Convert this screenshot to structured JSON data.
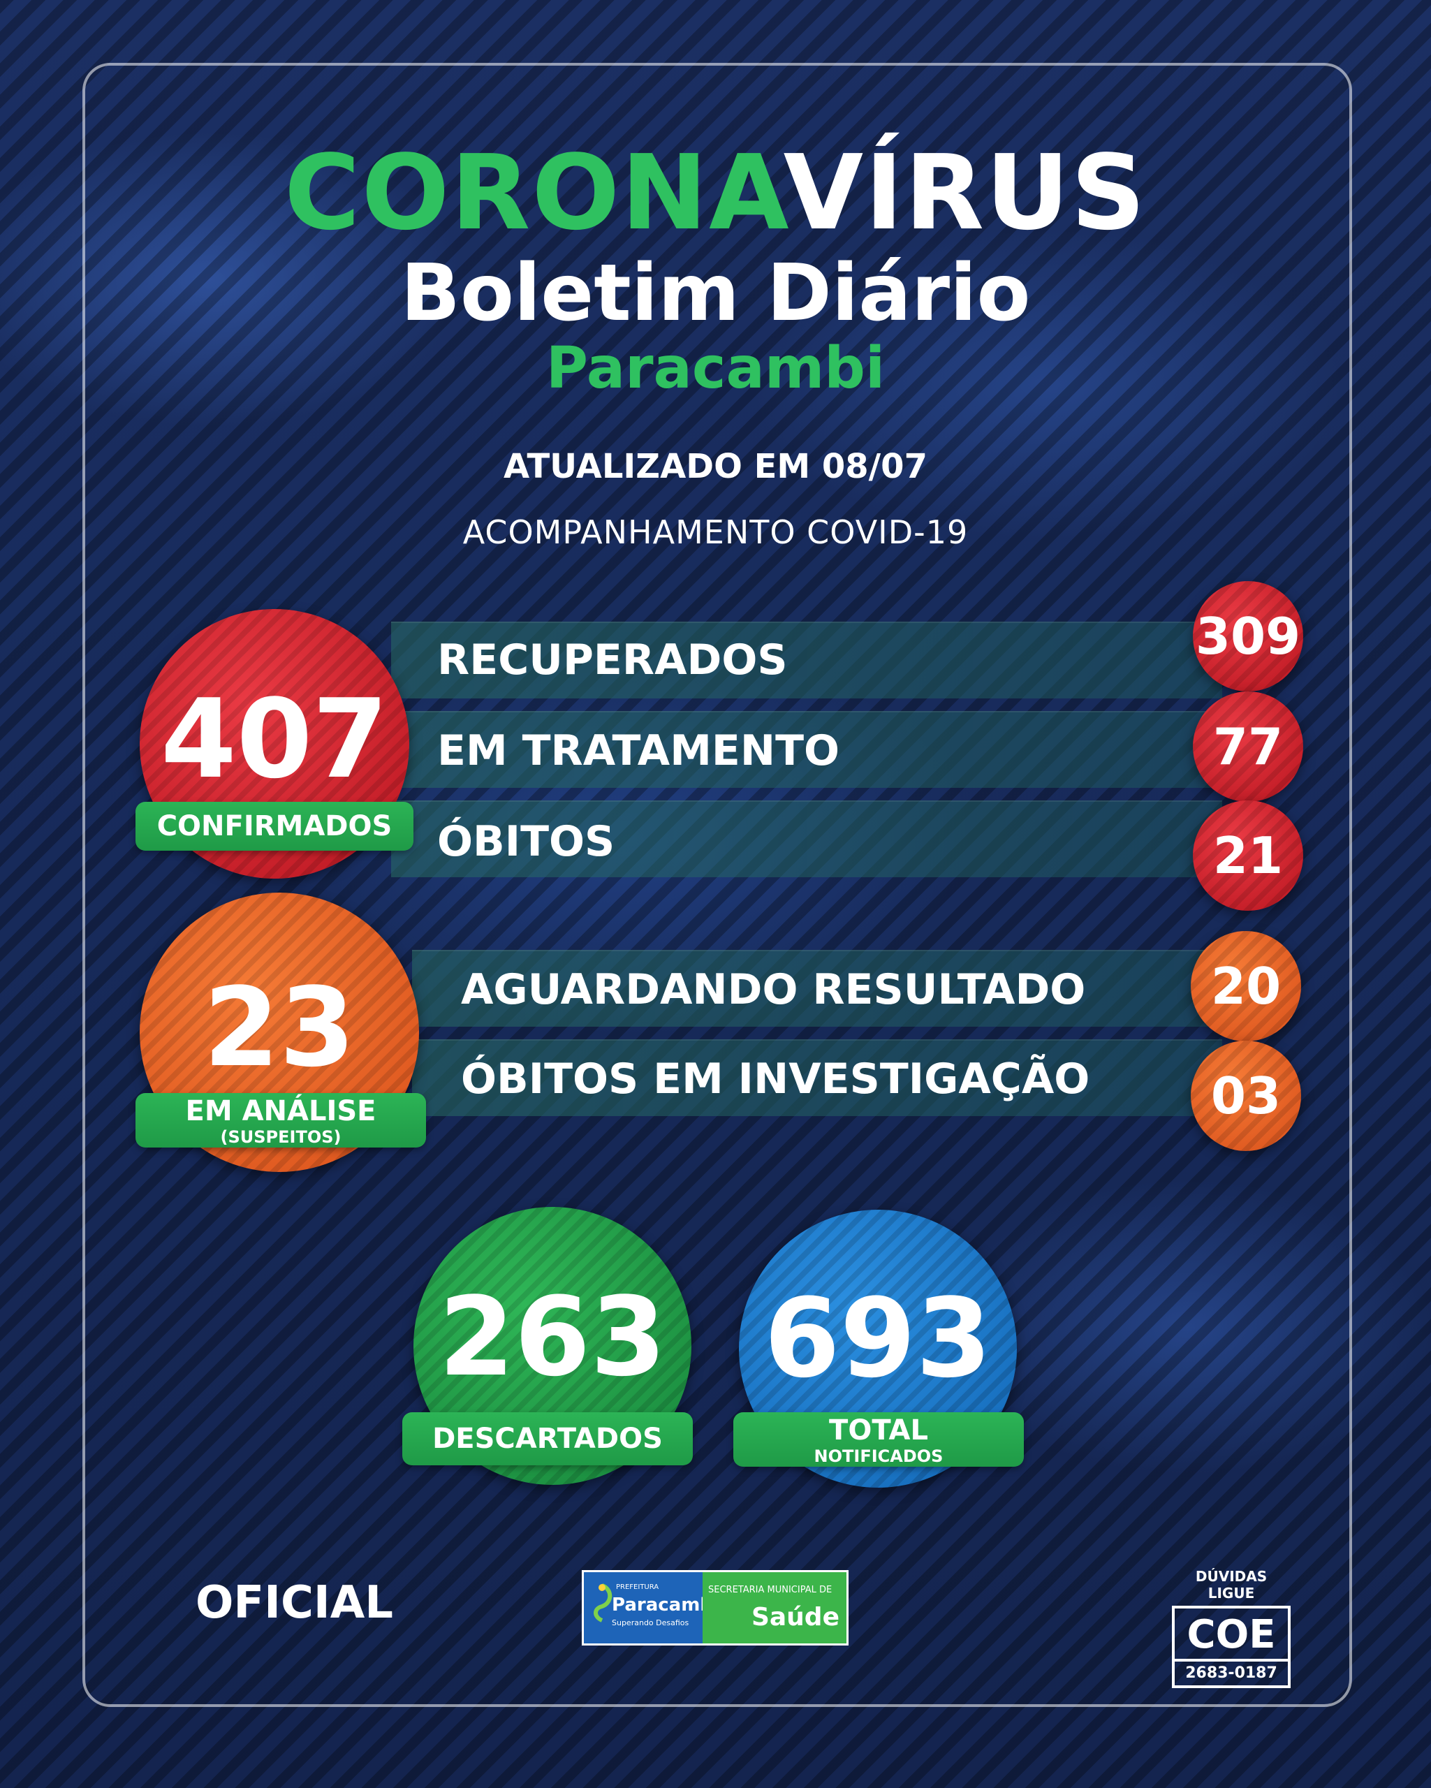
{
  "header": {
    "title_green": "CORONA",
    "title_white": "VÍRUS",
    "subtitle": "Boletim Diário",
    "city": "Paracambi",
    "updated": "ATUALIZADO EM 08/07",
    "follow_up": "ACOMPANHAMENTO COVID-19"
  },
  "confirmed": {
    "value": "407",
    "label": "CONFIRMADOS",
    "rows": [
      {
        "label": "RECUPERADOS",
        "value": "309"
      },
      {
        "label": "EM TRATAMENTO",
        "value": "77"
      },
      {
        "label": "ÓBITOS",
        "value": "21"
      }
    ]
  },
  "analysis": {
    "value": "23",
    "label": "EM ANÁLISE",
    "sublabel": "(SUSPEITOS)",
    "rows": [
      {
        "label": "AGUARDANDO RESULTADO",
        "value": "20"
      },
      {
        "label": "ÓBITOS EM INVESTIGAÇÃO",
        "value": "03"
      }
    ]
  },
  "discarded": {
    "value": "263",
    "label": "DESCARTADOS"
  },
  "notified": {
    "value": "693",
    "label": "TOTAL",
    "sublabel": "NOTIFICADOS"
  },
  "footer": {
    "official": "OFICIAL",
    "logo_prefeitura": "PREFEITURA",
    "logo_city": "Paracambi",
    "logo_slogan": "Superando Desafios",
    "logo_secretaria": "SECRETARIA MUNICIPAL DE",
    "logo_saude": "Saúde",
    "coe_caption": "DÚVIDAS LIGUE",
    "coe_label": "COE",
    "coe_phone": "2683-0187"
  },
  "colors": {
    "green": "#2fc160",
    "red": "#c91d28",
    "orange": "#e8602a",
    "blue": "#1a75c8",
    "background": "#172a5a"
  }
}
